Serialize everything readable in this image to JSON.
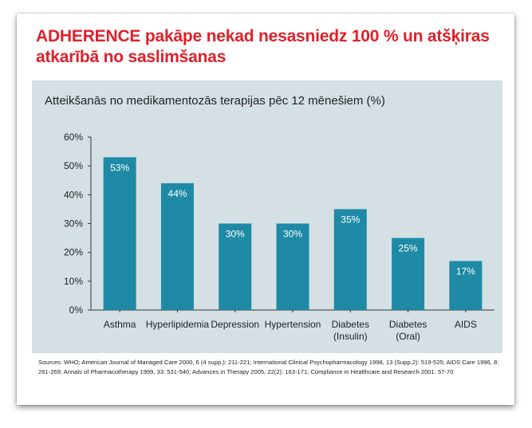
{
  "title": "ADHERENCE pakāpe nekad nesasniedz 100 % un atšķiras atkarībā no saslimšanas",
  "sources": "Sources: WHO; American Journal of Managed Care 2000, 6 (4 supp.): 211-221; International Clinical Psychopharmacology 1998, 13 (Supp.2): 519-525; AIDS Care 1996, 8: 261-269; Annals of Pharmacotherapy 1999, 33: 531-540; Advances in Therapy 2005, 22(2): 163-171; Compliance in Healthcare and Research 2001: 57-70",
  "colors": {
    "title": "#e0202a",
    "panel_background": "#d5e0e5",
    "bar": "#1f8aa6",
    "bar_label": "#ffffff",
    "axis": "#333333"
  },
  "chart_data": {
    "type": "bar",
    "title": "Atteikšanās no medikamentozās terapijas pēc 12 mēnešiem (%)",
    "xlabel": "",
    "ylabel": "",
    "categories": [
      "Asthma",
      "Hyperlipidemia",
      "Depression",
      "Hypertension",
      "Diabetes (Insulin)",
      "Diabetes (Oral)",
      "AIDS"
    ],
    "category_lines": [
      [
        "Asthma"
      ],
      [
        "Hyperlipidemia"
      ],
      [
        "Depression"
      ],
      [
        "Hypertension"
      ],
      [
        "Diabetes",
        "(Insulin)"
      ],
      [
        "Diabetes",
        "(Oral)"
      ],
      [
        "AIDS"
      ]
    ],
    "values": [
      53,
      44,
      30,
      30,
      35,
      25,
      17
    ],
    "data_labels": [
      "53%",
      "44%",
      "30%",
      "30%",
      "35%",
      "25%",
      "17%"
    ],
    "ylim": [
      0,
      60
    ],
    "y_ticks": [
      0,
      10,
      20,
      30,
      40,
      50,
      60
    ],
    "y_tick_labels": [
      "0%",
      "10%",
      "20%",
      "30%",
      "40%",
      "50%",
      "60%"
    ],
    "grid": false,
    "legend": false
  }
}
